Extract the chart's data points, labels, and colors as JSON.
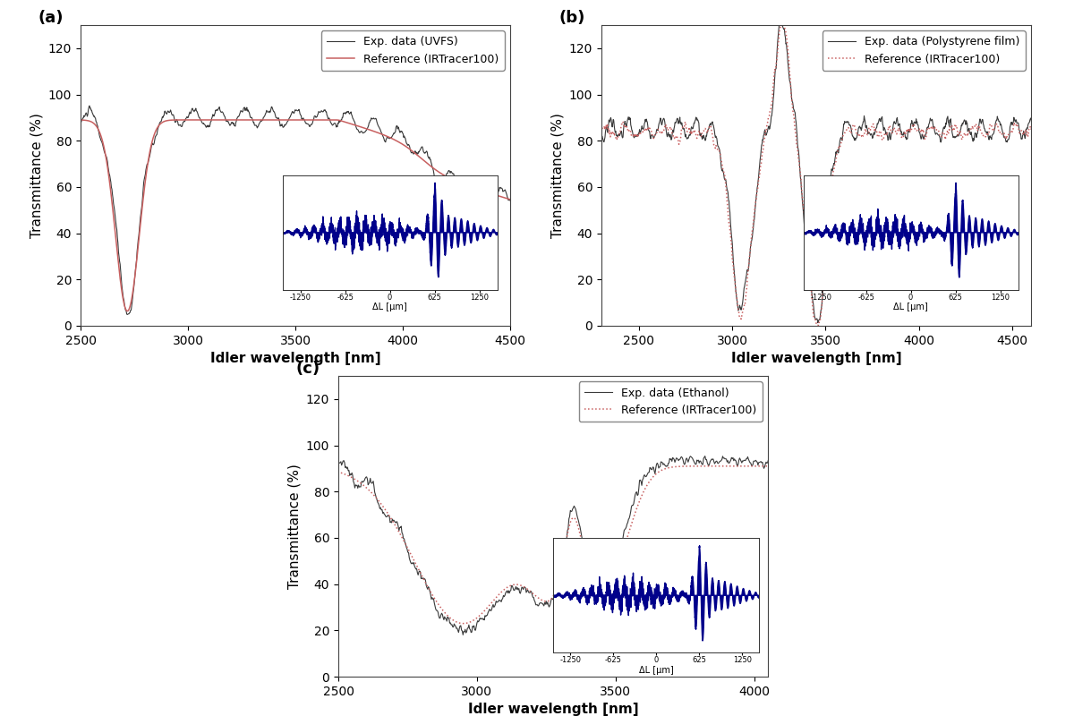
{
  "panel_a": {
    "label": "(a)",
    "xrange": [
      2500,
      4500
    ],
    "yrange": [
      0,
      130
    ],
    "yticks": [
      0,
      20,
      40,
      60,
      80,
      100,
      120
    ],
    "xticks": [
      2500,
      3000,
      3500,
      4000,
      4500
    ],
    "xlabel": "Idler wavelength [nm]",
    "ylabel": "Transmittance (%)",
    "legend_exp": "Exp. data (UVFS)",
    "legend_ref": "Reference (IRTracer100)"
  },
  "panel_b": {
    "label": "(b)",
    "xrange": [
      2300,
      4600
    ],
    "yrange": [
      0,
      130
    ],
    "yticks": [
      0,
      20,
      40,
      60,
      80,
      100,
      120
    ],
    "xticks": [
      2500,
      3000,
      3500,
      4000,
      4500
    ],
    "xlabel": "Idler wavelength [nm]",
    "ylabel": "Transmittance (%)",
    "legend_exp": "Exp. data (Polystyrene film)",
    "legend_ref": "Reference (IRTracer100)"
  },
  "panel_c": {
    "label": "(c)",
    "xrange": [
      2500,
      4050
    ],
    "yrange": [
      0,
      130
    ],
    "yticks": [
      0,
      20,
      40,
      60,
      80,
      100,
      120
    ],
    "xticks": [
      2500,
      3000,
      3500,
      4000
    ],
    "xlabel": "Idler wavelength [nm]",
    "ylabel": "Transmittance (%)",
    "legend_exp": "Exp. data (Ethanol)",
    "legend_ref": "Reference (IRTracer100)"
  },
  "inset_xlabel": "ΔL [μm]",
  "color_exp": "#3a3a3a",
  "color_ref": "#c86060",
  "inset_signal_color": "#00008B",
  "background": "#ffffff"
}
